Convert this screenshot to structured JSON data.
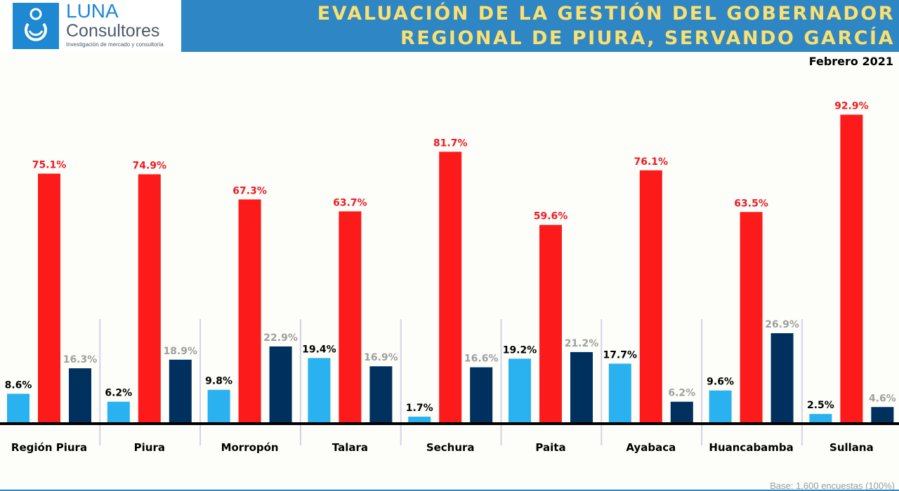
{
  "brand": {
    "name": "LUNA",
    "sub": "Consultores",
    "tagline": "Investigación de mercado y consultoría",
    "color": "#1e88d2"
  },
  "header": {
    "title_line1": "EVALUACIÓN DE LA GESTIÓN DEL GOBERNADOR",
    "title_line2": "REGIONAL DE PIURA, SERVANDO GARCÍA",
    "date": "Febrero 2021"
  },
  "footnote": "Base: 1,600 encuestas (100%)",
  "chart_data": {
    "type": "bar",
    "categories": [
      "Región Piura",
      "Piura",
      "Morropón",
      "Talara",
      "Sechura",
      "Paita",
      "Ayabaca",
      "Huancabamba",
      "Sullana"
    ],
    "series": [
      {
        "values": [
          8.6,
          6.2,
          9.8,
          19.4,
          1.7,
          19.2,
          17.7,
          9.6,
          2.5
        ],
        "color": "#29b2ef",
        "label_color": "#000000"
      },
      {
        "values": [
          75.1,
          74.9,
          67.3,
          63.7,
          81.7,
          59.6,
          76.1,
          63.5,
          92.9
        ],
        "color": "#fd1a1a",
        "label_color": "#ee1b24"
      },
      {
        "values": [
          16.3,
          18.9,
          22.9,
          16.9,
          16.6,
          21.2,
          6.2,
          26.9,
          4.6
        ],
        "color": "#00305e",
        "label_color": "#9f9f9f"
      }
    ],
    "value_suffix": "%",
    "ylim": [
      0,
      100
    ],
    "grid": false,
    "legend": "none"
  }
}
